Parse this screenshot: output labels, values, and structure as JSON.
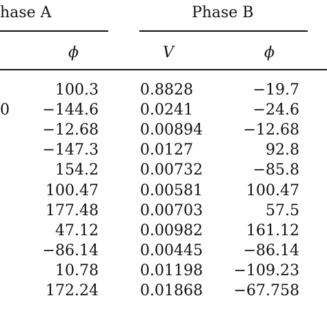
{
  "headers": {
    "phase_a": "hase A",
    "phase_b": "Phase B",
    "phi_a": "ϕ",
    "v_b": "V",
    "phi_b": "ϕ"
  },
  "rows": [
    {
      "left": "",
      "phi_a": "100.3",
      "v_b": "0.8828",
      "phi_b": "−19.7"
    },
    {
      "left": "0",
      "phi_a": "−144.6",
      "v_b": "0.0241",
      "phi_b": "−24.6"
    },
    {
      "left": "",
      "phi_a": "−12.68",
      "v_b": "0.00894",
      "phi_b": "−12.68"
    },
    {
      "left": "",
      "phi_a": "−147.3",
      "v_b": "0.0127",
      "phi_b": "92.8"
    },
    {
      "left": "",
      "phi_a": "154.2",
      "v_b": "0.00732",
      "phi_b": "−85.8"
    },
    {
      "left": "",
      "phi_a": "100.47",
      "v_b": "0.00581",
      "phi_b": "100.47"
    },
    {
      "left": "",
      "phi_a": "177.48",
      "v_b": "0.00703",
      "phi_b": "57.5"
    },
    {
      "left": "",
      "phi_a": "47.12",
      "v_b": "0.00982",
      "phi_b": "161.12"
    },
    {
      "left": "",
      "phi_a": "−86.14",
      "v_b": "0.00445",
      "phi_b": "−86.14"
    },
    {
      "left": "",
      "phi_a": "10.78",
      "v_b": "0.01198",
      "phi_b": "−109.23"
    },
    {
      "left": "",
      "phi_a": "172.24",
      "v_b": "0.01868",
      "phi_b": "−67.758"
    }
  ]
}
